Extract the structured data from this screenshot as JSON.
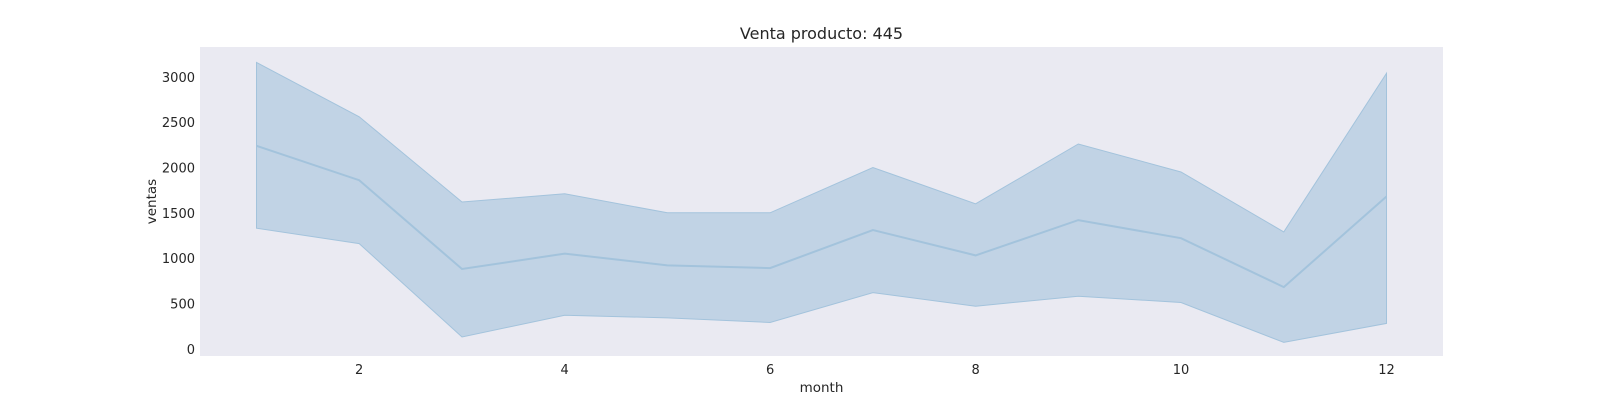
{
  "chart_data": {
    "type": "line",
    "title": "Venta producto: 445",
    "xlabel": "month",
    "ylabel": "ventas",
    "x": [
      1,
      2,
      3,
      4,
      5,
      6,
      7,
      8,
      9,
      10,
      11,
      12
    ],
    "series": [
      {
        "values": [
          2240,
          1860,
          880,
          1050,
          920,
          890,
          1310,
          1030,
          1420,
          1220,
          680,
          1680
        ],
        "ci_upper": [
          3160,
          2560,
          1620,
          1710,
          1500,
          1500,
          2000,
          1600,
          2260,
          1950,
          1290,
          3040
        ],
        "ci_lower": [
          1330,
          1160,
          130,
          370,
          340,
          290,
          620,
          470,
          580,
          510,
          70,
          280
        ]
      }
    ],
    "xticks": [
      2,
      4,
      6,
      8,
      10,
      12
    ],
    "yticks": [
      0,
      500,
      1000,
      1500,
      2000,
      2500,
      3000
    ],
    "xlim": [
      0.45,
      12.55
    ],
    "ylim": [
      -80,
      3330
    ],
    "grid": false,
    "colors": {
      "plot_background": "#eaeaf2",
      "line": "#a3c3dc",
      "band": "#c1d3e5",
      "text": "#262626"
    }
  }
}
